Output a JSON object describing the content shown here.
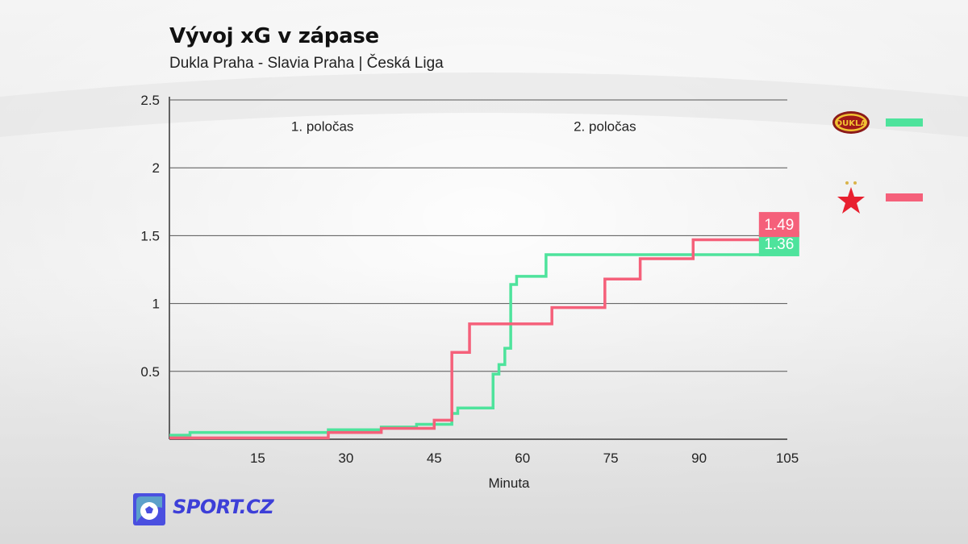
{
  "header": {
    "title": "Vývoj xG v zápase",
    "subtitle": "Dukla Praha - Slavia Praha | Česká Liga"
  },
  "brand": {
    "text": "SPORT.CZ",
    "color": "#3d3fd8",
    "icon": "soccer-ball-icon"
  },
  "legend": [
    {
      "team": "Dukla Praha",
      "icon": "dukla-crest-icon",
      "color": "#4ee39c"
    },
    {
      "team": "Slavia Praha",
      "icon": "slavia-star-icon",
      "color": "#f5607a"
    }
  ],
  "chart_data": {
    "type": "line",
    "step": true,
    "xlabel": "Minuta",
    "ylabel": "",
    "xlim": [
      0,
      105
    ],
    "ylim": [
      0,
      2.5
    ],
    "xticks": [
      "15",
      "30",
      "45",
      "60",
      "75",
      "90",
      "105"
    ],
    "yticks": [
      "0.5",
      "1",
      "1.5",
      "2",
      "2.5"
    ],
    "grid": "horizontal",
    "annotations": [
      {
        "text": "1. poločas",
        "x": 26,
        "y": 2.27
      },
      {
        "text": "2. poločas",
        "x": 74,
        "y": 2.27
      }
    ],
    "series": [
      {
        "team": "Dukla Praha",
        "color": "#4ee39c",
        "final_label": "1.36",
        "points": [
          [
            0,
            0.03
          ],
          [
            3.5,
            0.05
          ],
          [
            27,
            0.07
          ],
          [
            36,
            0.09
          ],
          [
            42,
            0.11
          ],
          [
            48,
            0.19
          ],
          [
            49,
            0.23
          ],
          [
            55,
            0.48
          ],
          [
            56,
            0.55
          ],
          [
            57,
            0.67
          ],
          [
            58,
            1.14
          ],
          [
            59,
            1.2
          ],
          [
            64,
            1.36
          ],
          [
            101,
            1.36
          ]
        ]
      },
      {
        "team": "Slavia Praha",
        "color": "#f5607a",
        "final_label": "1.49",
        "points": [
          [
            0,
            0.01
          ],
          [
            27,
            0.05
          ],
          [
            36,
            0.08
          ],
          [
            45,
            0.14
          ],
          [
            48,
            0.64
          ],
          [
            51,
            0.85
          ],
          [
            65,
            0.97
          ],
          [
            74,
            1.18
          ],
          [
            80,
            1.33
          ],
          [
            89,
            1.47
          ],
          [
            101,
            1.49
          ]
        ]
      }
    ]
  }
}
